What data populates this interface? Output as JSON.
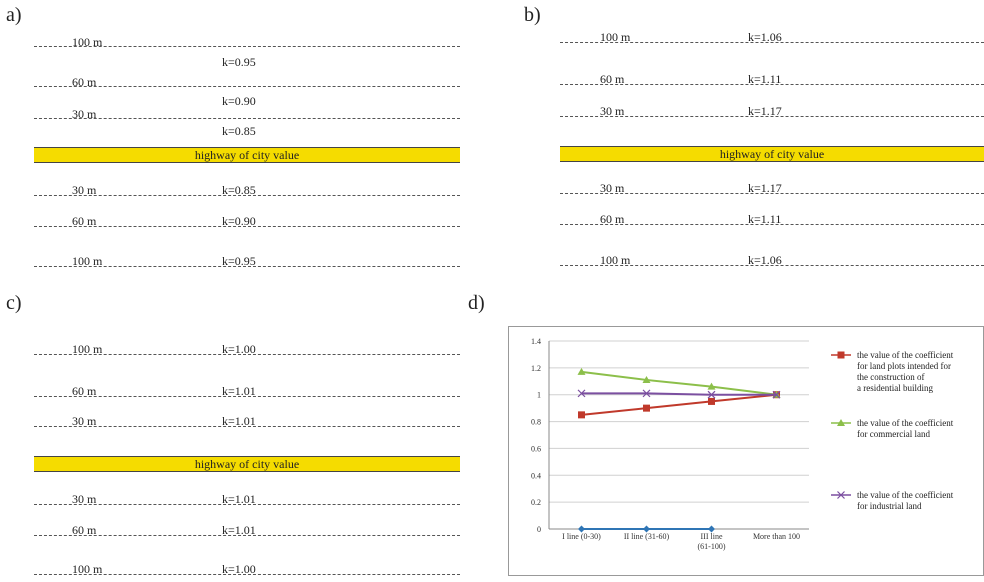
{
  "panels": {
    "a": {
      "label": "a)",
      "top_rows": [
        {
          "dist": "100 m",
          "k": ""
        },
        {
          "dist": "",
          "k": "k=0.95"
        },
        {
          "dist": "60 m",
          "k": ""
        },
        {
          "dist": "",
          "k": "k=0.90"
        },
        {
          "dist": "30 m",
          "k": ""
        },
        {
          "dist": "",
          "k": "k=0.85"
        }
      ],
      "highway": "highway of city value",
      "bottom_rows": [
        {
          "dist": "30 m",
          "k": "k=0.85"
        },
        {
          "dist": "60 m",
          "k": "k=0.90"
        },
        {
          "dist": "100 m",
          "k": "k=0.95"
        }
      ]
    },
    "b": {
      "label": "b)",
      "top_rows": [
        {
          "dist": "100 m",
          "k": "k=1.06"
        },
        {
          "dist": "60 m",
          "k": "k=1.11"
        },
        {
          "dist": "30 m",
          "k": "k=1.17"
        }
      ],
      "highway": "highway of city value",
      "bottom_rows": [
        {
          "dist": "30 m",
          "k": "k=1.17"
        },
        {
          "dist": "60 m",
          "k": "k=1.11"
        },
        {
          "dist": "100 m",
          "k": "k=1.06"
        }
      ]
    },
    "c": {
      "label": "c)",
      "top_rows": [
        {
          "dist": "100 m",
          "k": "k=1.00"
        },
        {
          "dist": "60 m",
          "k": "k=1.01"
        },
        {
          "dist": "30 m",
          "k": "k=1.01"
        }
      ],
      "highway": "highway of city value",
      "bottom_rows": [
        {
          "dist": "30 m",
          "k": "k=1.01"
        },
        {
          "dist": "60 m",
          "k": "k=1.01"
        },
        {
          "dist": "100 m",
          "k": "k=1.00"
        }
      ]
    },
    "d": {
      "label": "d)"
    }
  },
  "chart_data": {
    "type": "line",
    "categories": [
      "I line (0-30)",
      "II line (31-60)",
      "III line\n(61-100)",
      "More than 100"
    ],
    "ylim": [
      0,
      1.4
    ],
    "yticks": [
      "0",
      "0.2",
      "0.4",
      "0.6",
      "0.8",
      "1",
      "1.2",
      "1.4"
    ],
    "grid": true,
    "legend_placement": "right",
    "series": [
      {
        "name": "",
        "color": "#2f75b5",
        "marker": "diamond",
        "values": [
          0,
          0,
          0,
          null
        ]
      },
      {
        "name": "the value of the coefficient for land plots intended for the construction of a residential building",
        "legend_lines": [
          "the value of the coefficient",
          "for land plots intended for",
          "the construction of",
          "a residential building"
        ],
        "color": "#c0392b",
        "marker": "square",
        "values": [
          0.85,
          0.9,
          0.95,
          1.0
        ]
      },
      {
        "name": "the value of the coefficient for commercial land",
        "legend_lines": [
          "the value of the coefficient",
          "for commercial land"
        ],
        "color": "#8cbf4a",
        "marker": "triangle",
        "values": [
          1.17,
          1.11,
          1.06,
          1.0
        ]
      },
      {
        "name": "the value of the coefficient for industrial land",
        "legend_lines": [
          "the value of the coefficient",
          "for industrial land"
        ],
        "color": "#7b4fa0",
        "marker": "x",
        "values": [
          1.01,
          1.01,
          1.0,
          1.0
        ]
      }
    ]
  }
}
